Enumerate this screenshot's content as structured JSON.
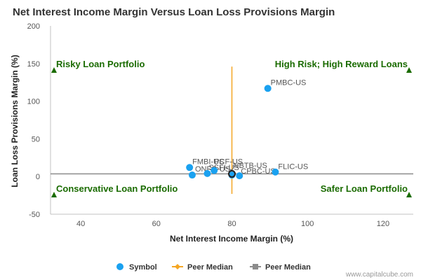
{
  "chart_data": {
    "type": "scatter",
    "title": "Net Interest Income Margin Versus Loan Loss Provisions Margin",
    "xlabel": "Net Interest Income Margin (%)",
    "ylabel": "Loan Loss Provisions Margin (%)",
    "xlim": [
      32,
      128
    ],
    "ylim": [
      -50,
      200
    ],
    "xticks": [
      "40",
      "60",
      "80",
      "100",
      "120"
    ],
    "yticks": [
      "-50",
      "0",
      "50",
      "100",
      "150",
      "200"
    ],
    "grid": false,
    "legend_position": "bottom",
    "series": [
      {
        "name": "Symbol",
        "color": "#1aa1f0",
        "points": [
          {
            "label": "PMBC-US",
            "x": 89.5,
            "y": 117
          },
          {
            "label": "FMBI-US",
            "x": 68.8,
            "y": 12
          },
          {
            "label": "ONFC-US",
            "x": 69.5,
            "y": 2
          },
          {
            "label": "SSFI-US",
            "x": 73.5,
            "y": 4
          },
          {
            "label": "PCF-US",
            "x": 75.3,
            "y": 8
          },
          {
            "label": "NBTB-US",
            "x": 80,
            "y": 2
          },
          {
            "label": "CPBC-US",
            "x": 82,
            "y": 1
          },
          {
            "label": "FLIC-US",
            "x": 91.5,
            "y": 6
          }
        ]
      },
      {
        "name": "Peer Median",
        "color": "#f5a623",
        "x": 80,
        "y_range": [
          -23,
          146
        ]
      },
      {
        "name": "Peer Median",
        "color": "#8c8c8c",
        "y": 3.5,
        "x_range": [
          32,
          128
        ]
      }
    ],
    "annotations": [
      {
        "text": "Risky Loan Portfolio",
        "position": "top-left"
      },
      {
        "text": "High Risk; High Reward Loans",
        "position": "top-right"
      },
      {
        "text": "Conservative Loan Portfolio",
        "position": "bottom-left"
      },
      {
        "text": "Safer Loan Portfolio",
        "position": "bottom-right"
      }
    ],
    "annotation_color": "#1a6b00"
  },
  "credit": "www.capitalcube.com"
}
